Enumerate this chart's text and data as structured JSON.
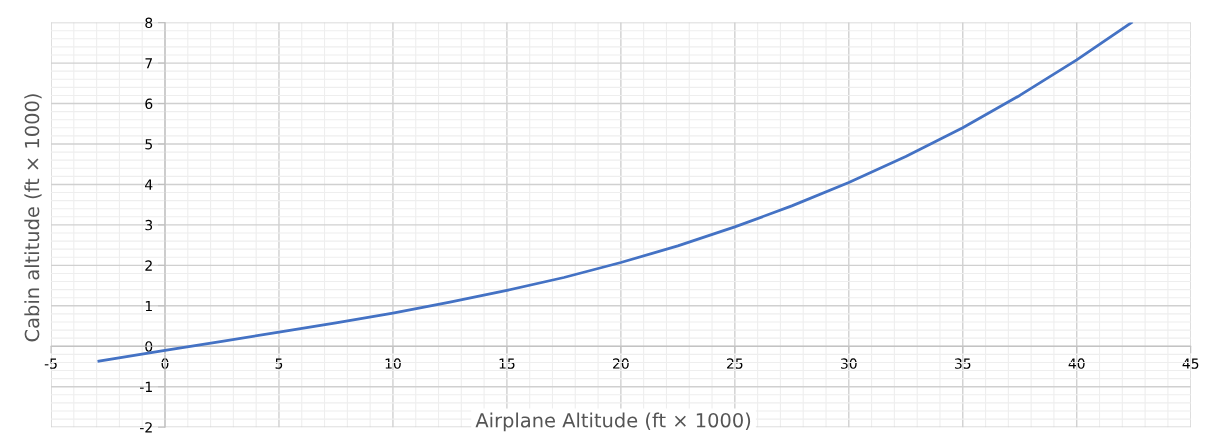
{
  "chart_data": {
    "type": "line",
    "xlabel": "Airplane Altitude (ft × 1000)",
    "ylabel": "Cabin altitude (ft × 1000)",
    "series": [
      {
        "color": "#4472c4",
        "x": [
          -2.9,
          0,
          2.5,
          5,
          7.5,
          10,
          12.5,
          15,
          17.5,
          20,
          22.5,
          25,
          27.5,
          30,
          32.5,
          35,
          37.5,
          40,
          42.4
        ],
        "values": [
          -0.37,
          -0.1,
          0.12,
          0.35,
          0.58,
          0.82,
          1.09,
          1.38,
          1.7,
          2.07,
          2.48,
          2.95,
          3.47,
          4.05,
          4.69,
          5.4,
          6.2,
          7.08,
          8.0
        ]
      }
    ],
    "xlim": [
      -5,
      45
    ],
    "xticks": [
      -5,
      0,
      5,
      10,
      15,
      20,
      25,
      30,
      35,
      40,
      45
    ],
    "ylim": [
      -2,
      8
    ],
    "yticks": [
      -2,
      -1,
      0,
      1,
      2,
      3,
      4,
      5,
      6,
      7,
      8
    ],
    "grid": true,
    "marker": "none",
    "line_style": "solid"
  }
}
